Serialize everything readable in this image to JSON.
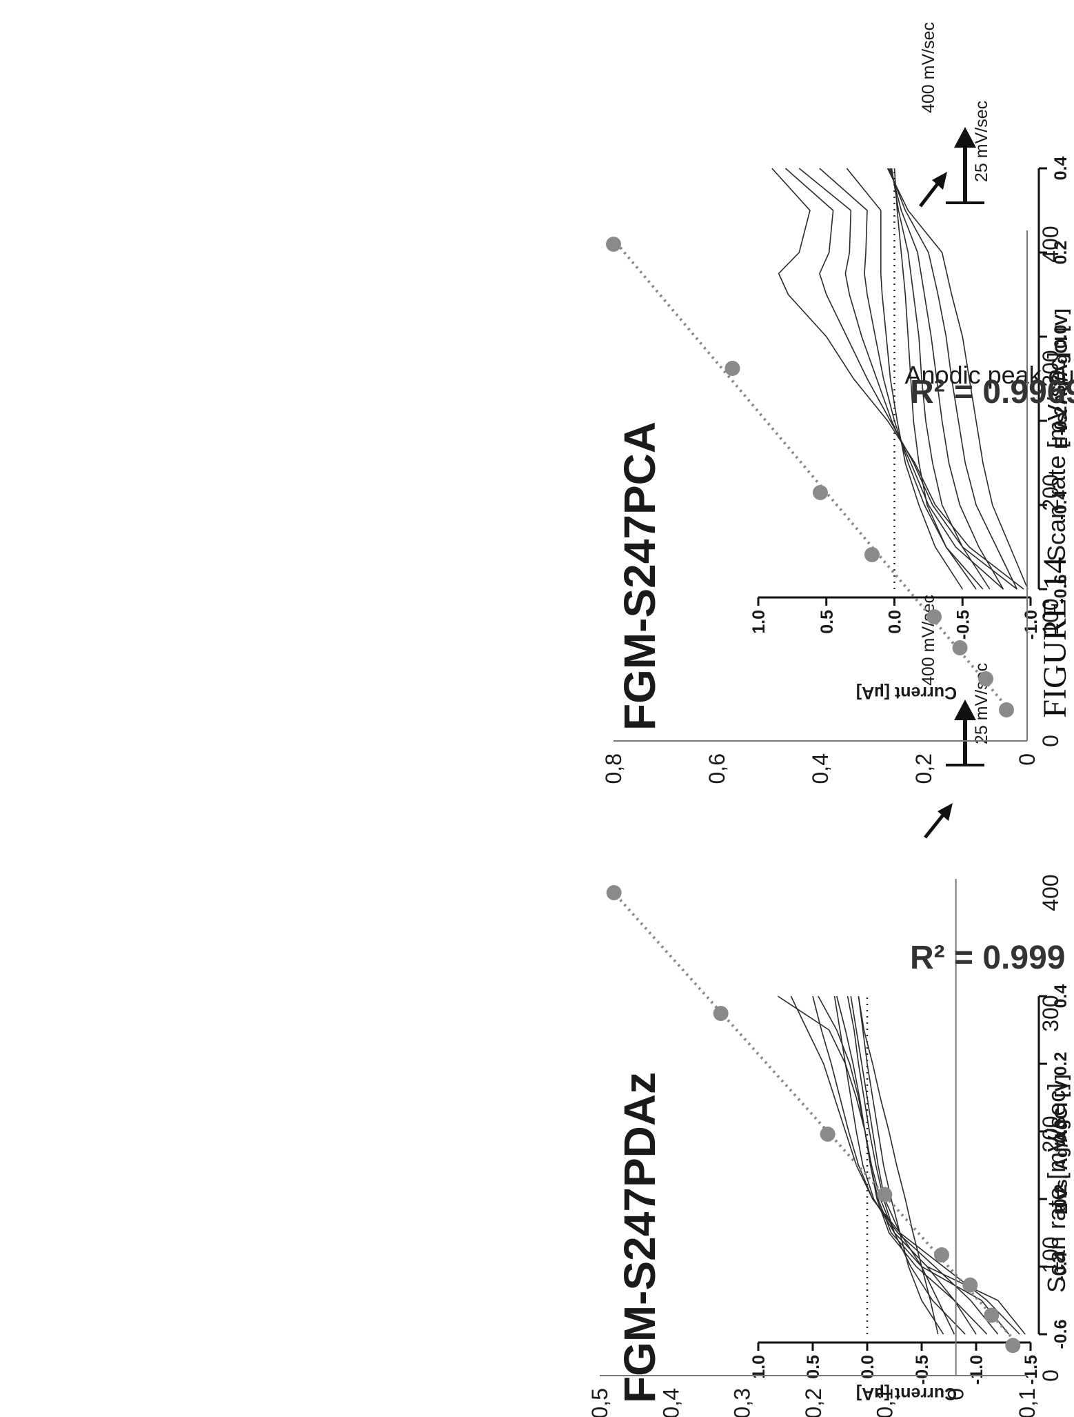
{
  "figure_caption": "FIGURE 14",
  "cv_axes": {
    "xlabel": "E vs. Ag/AgCl [V]",
    "ylabel": "Current [µA]",
    "xticks": [
      -0.6,
      -0.4,
      -0.2,
      0.0,
      0.2,
      0.4
    ],
    "xtick_labels": [
      "-0.6",
      "-0.4",
      "-0.2",
      "0.0",
      "0.2",
      "0.4"
    ],
    "scan_rate_low": "25 mV/sec",
    "scan_rate_high": "400 mV/sec"
  },
  "scan_axes": {
    "xlabel": "Scan rate [mV/sec]",
    "ylabel": "Anodic peak current [µA]",
    "xticks": [
      0,
      100,
      200,
      300,
      400
    ],
    "xtick_labels": [
      "0",
      "100",
      "200",
      "300",
      "400"
    ]
  },
  "panels": [
    {
      "title": "FGM-S247PDAz",
      "cv": {
        "ylim": [
          -1.5,
          1.0
        ],
        "yticks": [
          1.0,
          0.5,
          0.0,
          -0.5,
          -1.0,
          -1.5
        ],
        "ytick_labels": [
          "1.0",
          "0.5",
          "0.0",
          "-0.5",
          "-1.0",
          "-1.5"
        ]
      },
      "scan": {
        "r2_label": "R² = 0.999",
        "ylim": [
          -0.1,
          0.5
        ],
        "yticks": [
          -0.1,
          0,
          0.1,
          0.2,
          0.3,
          0.4,
          0.5
        ],
        "ytick_labels": [
          "-0,1",
          "0",
          "0,1",
          "0,2",
          "0,3",
          "0,4",
          "0,5"
        ]
      }
    },
    {
      "title": "FGM-S247PCA",
      "cv": {
        "ylim": [
          -1.0,
          1.0
        ],
        "yticks": [
          1.0,
          0.5,
          0.0,
          -0.5,
          -1.0
        ],
        "ytick_labels": [
          "1.0",
          "0.5",
          "0.0",
          "-0.5",
          "-1.0"
        ]
      },
      "scan": {
        "r2_label": "R² = 0.9969",
        "ylim": [
          0,
          0.8
        ],
        "yticks": [
          0,
          0.2,
          0.4,
          0.6,
          0.8
        ],
        "ytick_labels": [
          "0",
          "0,2",
          "0,4",
          "0,6",
          "0,8"
        ]
      }
    }
  ],
  "chart_data": [
    {
      "type": "line",
      "title": "FGM-S247PDAz",
      "xlabel": "E vs. Ag/AgCl [V]",
      "ylabel": "Current [µA]",
      "xlim": [
        -0.6,
        0.4
      ],
      "ylim": [
        -1.5,
        1.0
      ],
      "grid": false,
      "scan_rates": [
        25,
        50,
        75,
        100,
        150,
        200,
        250,
        300,
        350,
        400
      ],
      "series": [
        {
          "x": [
            -0.6,
            -0.5,
            -0.4,
            -0.3,
            -0.2,
            -0.1,
            0.0,
            0.1,
            0.2,
            0.3,
            0.4
          ],
          "y": [
            -1.45,
            -1.2,
            -0.55,
            -0.25,
            -0.12,
            -0.04,
            0.02,
            0.1,
            0.2,
            0.35,
            0.82
          ]
        },
        {
          "x": [
            -0.6,
            -0.5,
            -0.4,
            -0.3,
            -0.2,
            -0.1,
            0.0,
            0.1,
            0.2,
            0.3,
            0.4
          ],
          "y": [
            -1.3,
            -1.05,
            -0.5,
            -0.22,
            -0.1,
            -0.03,
            0.02,
            0.08,
            0.16,
            0.28,
            0.45
          ]
        },
        {
          "x": [
            -0.6,
            -0.5,
            -0.4,
            -0.3,
            -0.2,
            -0.1,
            0.0,
            0.1,
            0.2,
            0.3,
            0.4
          ],
          "y": [
            -1.1,
            -0.8,
            -0.45,
            -0.2,
            -0.09,
            -0.03,
            0.02,
            0.07,
            0.13,
            0.2,
            0.28
          ]
        },
        {
          "x": [
            -0.6,
            -0.5,
            -0.4,
            -0.3,
            -0.2,
            -0.1,
            0.0,
            0.1,
            0.2,
            0.3,
            0.4
          ],
          "y": [
            -0.9,
            -0.6,
            -0.4,
            -0.25,
            -0.15,
            -0.08,
            -0.02,
            0.03,
            0.08,
            0.12,
            0.18
          ]
        },
        {
          "x": [
            -0.6,
            -0.5,
            -0.4,
            -0.3,
            -0.2,
            -0.1,
            0.0,
            0.1,
            0.2,
            0.3,
            0.4
          ],
          "y": [
            -0.7,
            -0.5,
            -0.38,
            -0.3,
            -0.22,
            -0.15,
            -0.1,
            -0.05,
            0.0,
            0.04,
            0.08
          ]
        },
        {
          "x": [
            0.4,
            0.3,
            0.2,
            0.1,
            0.0,
            -0.1,
            -0.2,
            -0.3,
            -0.4,
            -0.5,
            -0.6
          ],
          "y": [
            0.7,
            0.55,
            0.4,
            0.3,
            0.2,
            0.1,
            -0.05,
            -0.3,
            -0.7,
            -1.1,
            -1.4
          ]
        },
        {
          "x": [
            0.4,
            0.3,
            0.2,
            0.1,
            0.0,
            -0.1,
            -0.2,
            -0.3,
            -0.4,
            -0.5,
            -0.6
          ],
          "y": [
            0.5,
            0.42,
            0.33,
            0.25,
            0.17,
            0.08,
            -0.05,
            -0.28,
            -0.62,
            -0.95,
            -1.2
          ]
        },
        {
          "x": [
            0.4,
            0.3,
            0.2,
            0.1,
            0.0,
            -0.1,
            -0.2,
            -0.3,
            -0.4,
            -0.5,
            -0.6
          ],
          "y": [
            0.3,
            0.25,
            0.2,
            0.15,
            0.1,
            0.04,
            -0.06,
            -0.25,
            -0.55,
            -0.8,
            -1.0
          ]
        },
        {
          "x": [
            0.4,
            0.3,
            0.2,
            0.1,
            0.0,
            -0.1,
            -0.2,
            -0.3,
            -0.4,
            -0.5,
            -0.6
          ],
          "y": [
            0.15,
            0.1,
            0.05,
            0.0,
            -0.05,
            -0.1,
            -0.16,
            -0.3,
            -0.5,
            -0.65,
            -0.8
          ]
        },
        {
          "x": [
            0.4,
            0.3,
            0.2,
            0.1,
            0.0,
            -0.1,
            -0.2,
            -0.3,
            -0.4,
            -0.5,
            -0.6
          ],
          "y": [
            0.08,
            0.03,
            -0.05,
            -0.12,
            -0.2,
            -0.27,
            -0.35,
            -0.42,
            -0.5,
            -0.58,
            -0.65
          ]
        }
      ],
      "reference_line_y": 0.0
    },
    {
      "type": "scatter",
      "title": "FGM-S247PDAz",
      "xlabel": "Scan rate [mV/sec]",
      "ylabel": "Anodic peak current [µA]",
      "xlim": [
        0,
        400
      ],
      "ylim": [
        -0.1,
        0.5
      ],
      "r2": "R² = 0.999",
      "x": [
        25,
        50,
        75,
        100,
        150,
        200,
        300,
        400
      ],
      "y": [
        -0.08,
        -0.05,
        -0.02,
        0.02,
        0.1,
        0.18,
        0.33,
        0.48
      ],
      "trendline": "linear"
    },
    {
      "type": "line",
      "title": "FGM-S247PCA",
      "xlabel": "E vs. Ag/AgCl [V]",
      "ylabel": "Current [µA]",
      "xlim": [
        -0.6,
        0.4
      ],
      "ylim": [
        -1.0,
        1.0
      ],
      "grid": false,
      "scan_rates": [
        25,
        50,
        75,
        100,
        150,
        200,
        250,
        300,
        350,
        400
      ],
      "series": [
        {
          "x": [
            -0.6,
            -0.5,
            -0.4,
            -0.3,
            -0.2,
            -0.1,
            0.0,
            0.1,
            0.15,
            0.2,
            0.3,
            0.4
          ],
          "y": [
            -0.95,
            -0.55,
            -0.3,
            -0.15,
            0.05,
            0.3,
            0.5,
            0.78,
            0.85,
            0.7,
            0.62,
            0.9
          ]
        },
        {
          "x": [
            -0.6,
            -0.5,
            -0.4,
            -0.3,
            -0.2,
            -0.1,
            0.0,
            0.1,
            0.15,
            0.2,
            0.3,
            0.4
          ],
          "y": [
            -0.9,
            -0.5,
            -0.28,
            -0.14,
            0.03,
            0.2,
            0.35,
            0.5,
            0.55,
            0.48,
            0.45,
            0.8
          ]
        },
        {
          "x": [
            -0.6,
            -0.5,
            -0.4,
            -0.3,
            -0.2,
            -0.1,
            0.0,
            0.1,
            0.15,
            0.2,
            0.3,
            0.4
          ],
          "y": [
            -0.8,
            -0.45,
            -0.25,
            -0.12,
            0.02,
            0.13,
            0.24,
            0.33,
            0.36,
            0.33,
            0.32,
            0.7
          ]
        },
        {
          "x": [
            -0.6,
            -0.5,
            -0.4,
            -0.3,
            -0.2,
            -0.1,
            0.0,
            0.1,
            0.15,
            0.2,
            0.3,
            0.4
          ],
          "y": [
            -0.65,
            -0.38,
            -0.22,
            -0.1,
            0.0,
            0.08,
            0.14,
            0.2,
            0.22,
            0.21,
            0.2,
            0.55
          ]
        },
        {
          "x": [
            -0.6,
            -0.5,
            -0.4,
            -0.3,
            -0.2,
            -0.1,
            0.0,
            0.1,
            0.15,
            0.2,
            0.3,
            0.4
          ],
          "y": [
            -0.5,
            -0.3,
            -0.18,
            -0.08,
            -0.02,
            0.03,
            0.06,
            0.09,
            0.1,
            0.1,
            0.1,
            0.35
          ]
        },
        {
          "x": [
            0.4,
            0.3,
            0.2,
            0.1,
            0.0,
            -0.1,
            -0.2,
            -0.3,
            -0.4,
            -0.5,
            -0.6
          ],
          "y": [
            0.05,
            -0.1,
            -0.35,
            -0.42,
            -0.5,
            -0.55,
            -0.6,
            -0.65,
            -0.72,
            -0.85,
            -0.98
          ]
        },
        {
          "x": [
            0.4,
            0.3,
            0.2,
            0.1,
            0.0,
            -0.1,
            -0.2,
            -0.3,
            -0.4,
            -0.5,
            -0.6
          ],
          "y": [
            0.04,
            -0.08,
            -0.25,
            -0.32,
            -0.38,
            -0.42,
            -0.47,
            -0.52,
            -0.6,
            -0.75,
            -0.9
          ]
        },
        {
          "x": [
            0.4,
            0.3,
            0.2,
            0.1,
            0.0,
            -0.1,
            -0.2,
            -0.3,
            -0.4,
            -0.5,
            -0.6
          ],
          "y": [
            0.03,
            -0.05,
            -0.17,
            -0.22,
            -0.27,
            -0.31,
            -0.35,
            -0.4,
            -0.48,
            -0.62,
            -0.8
          ]
        },
        {
          "x": [
            0.4,
            0.3,
            0.2,
            0.1,
            0.0,
            -0.1,
            -0.2,
            -0.3,
            -0.4,
            -0.5,
            -0.6
          ],
          "y": [
            0.02,
            -0.03,
            -0.1,
            -0.14,
            -0.18,
            -0.2,
            -0.23,
            -0.28,
            -0.35,
            -0.5,
            -0.7
          ]
        },
        {
          "x": [
            0.4,
            0.3,
            0.2,
            0.1,
            0.0,
            -0.1,
            -0.2,
            -0.3,
            -0.4,
            -0.5,
            -0.6
          ],
          "y": [
            0.0,
            -0.02,
            -0.05,
            -0.08,
            -0.1,
            -0.12,
            -0.14,
            -0.18,
            -0.24,
            -0.38,
            -0.6
          ]
        }
      ],
      "reference_line_y": 0.0
    },
    {
      "type": "scatter",
      "title": "FGM-S247PCA",
      "xlabel": "Scan rate [mV/sec]",
      "ylabel": "Anodic peak current [µA]",
      "xlim": [
        0,
        400
      ],
      "ylim": [
        0,
        0.8
      ],
      "r2": "R² = 0.9969",
      "x": [
        25,
        50,
        75,
        100,
        150,
        200,
        300,
        400
      ],
      "y": [
        0.04,
        0.08,
        0.13,
        0.18,
        0.3,
        0.4,
        0.57,
        0.8
      ],
      "trendline": "linear"
    }
  ]
}
